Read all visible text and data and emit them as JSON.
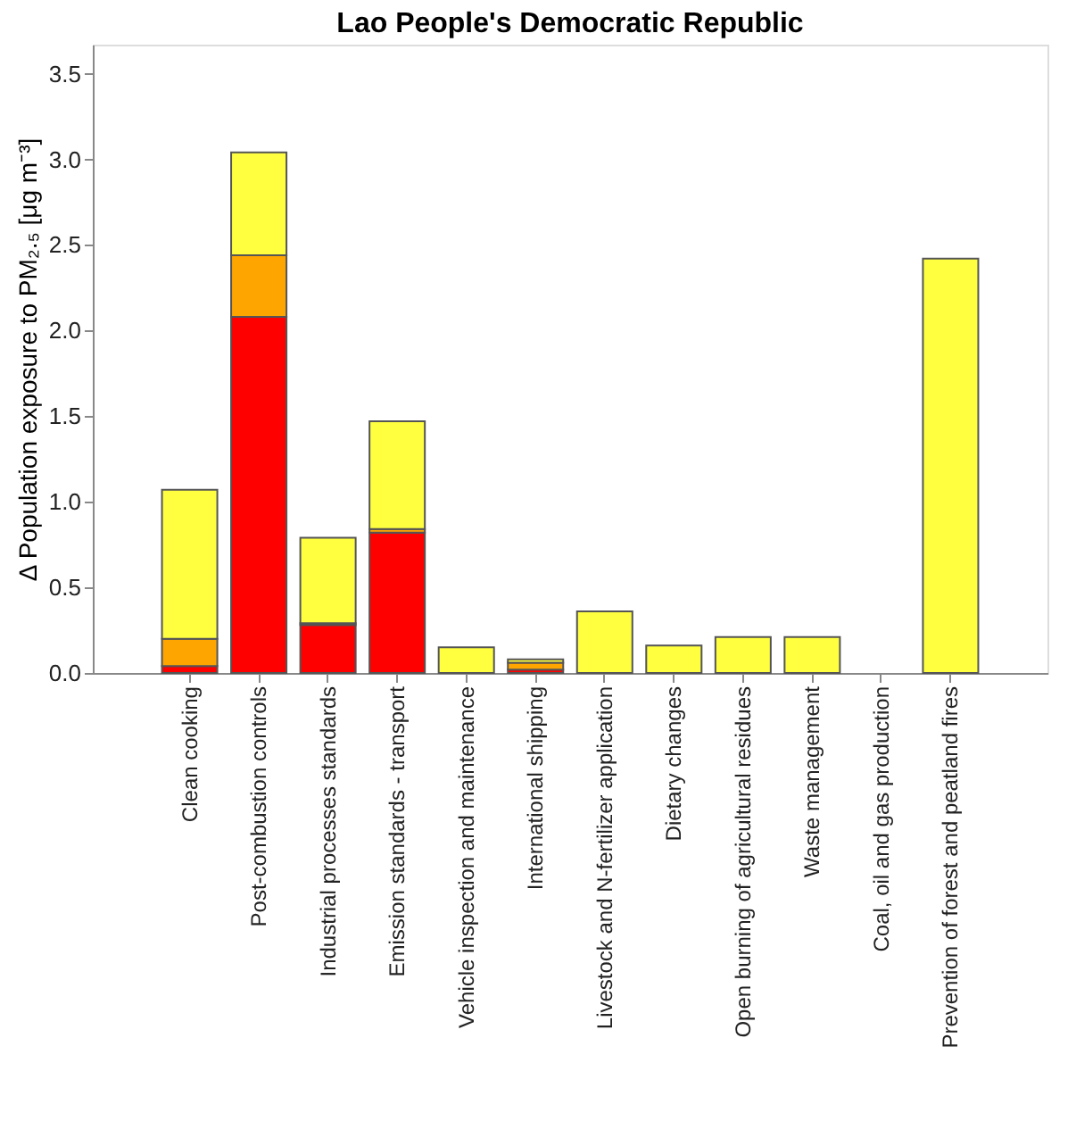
{
  "chart_data": {
    "type": "bar",
    "title": "Lao People's Democratic Republic",
    "ylabel": "Δ Population exposure to PM₂.₅ [μg m⁻³]",
    "categories": [
      "Clean cooking",
      "Post-combustion controls",
      "Industrial processes standards",
      "Emission standards - transport",
      "Vehicle inspection and maintenance",
      "International shipping",
      "Livestock and N-fertilizer application",
      "Dietary changes",
      "Open burning of agricultural residues",
      "Waste management",
      "Coal, oil and gas production",
      "Prevention of forest and peatland fires"
    ],
    "stacked": true,
    "series": [
      {
        "color": "#ff0000",
        "values": [
          0.04,
          2.08,
          0.28,
          0.82,
          null,
          0.02,
          null,
          null,
          null,
          null,
          null,
          null
        ]
      },
      {
        "color": "#ffa500",
        "values": [
          0.16,
          0.36,
          0.01,
          0.02,
          null,
          0.04,
          null,
          null,
          null,
          null,
          null,
          null
        ]
      },
      {
        "color": "#ffff40",
        "values": [
          0.87,
          0.6,
          0.5,
          0.63,
          0.15,
          0.02,
          0.36,
          0.16,
          0.21,
          0.21,
          0,
          2.42
        ]
      }
    ],
    "ylim": [
      0,
      3.67
    ],
    "yticks": [
      {
        "value": 0,
        "label": "0.0"
      },
      0.5,
      {
        "value": 1,
        "label": "1.0"
      },
      1.5,
      {
        "value": 2,
        "label": "2.0"
      },
      2.5,
      {
        "value": 3,
        "label": "3.0"
      },
      3.5
    ],
    "grid": false,
    "legend": false
  }
}
